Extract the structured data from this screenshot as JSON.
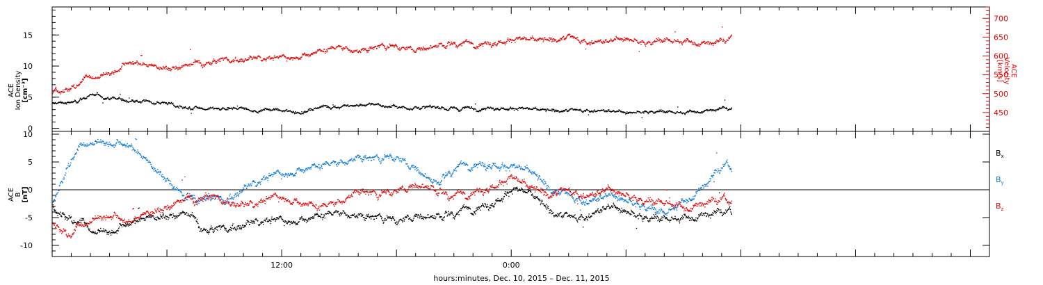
{
  "colors": {
    "black": "#000000",
    "red": "#e00000",
    "blue": "#0a78d8"
  },
  "xlabel": "hours:minutes, Dec. 10, 2015 – Dec. 11, 2015",
  "chart_data": [
    {
      "type": "scatter",
      "panel": "top",
      "ylabel_left": [
        "ACE",
        "Ion Density",
        "[cm⁻³]"
      ],
      "ylabel_right": [
        "ACE",
        "Velocity",
        "[km/s]"
      ],
      "x_axis": {
        "unit": "hours since Dec 10 00:00",
        "range": [
          0,
          49
        ],
        "tick_labels": [
          {
            "x": 12,
            "label": "12:00"
          },
          {
            "x": 24,
            "label": "0:00"
          }
        ]
      },
      "y_left": {
        "range": [
          -0.5,
          19.5
        ],
        "ticks": [
          0,
          5,
          10,
          15
        ]
      },
      "y_right": {
        "range": [
          400,
          730
        ],
        "ticks": [
          450,
          500,
          550,
          600,
          650,
          700
        ]
      },
      "series": [
        {
          "key": "density",
          "axis": "left",
          "color": "black",
          "x_end": 35.5,
          "anchors": [
            [
              0,
              4
            ],
            [
              1,
              4.3
            ],
            [
              2,
              5.5
            ],
            [
              3,
              5
            ],
            [
              4,
              4.6
            ],
            [
              5,
              4.3
            ],
            [
              6,
              4.1
            ],
            [
              7,
              3.4
            ],
            [
              8,
              3.1
            ],
            [
              10,
              3.1
            ],
            [
              11,
              3
            ],
            [
              12,
              2.9
            ],
            [
              13,
              2.7
            ],
            [
              14,
              3.4
            ],
            [
              15,
              3.7
            ],
            [
              17,
              3.8
            ],
            [
              18,
              3.5
            ],
            [
              19,
              3.3
            ],
            [
              20,
              3.2
            ],
            [
              21,
              3.2
            ],
            [
              22,
              3.3
            ],
            [
              23,
              3.5
            ],
            [
              24,
              3.3
            ],
            [
              25,
              3
            ],
            [
              26,
              2.8
            ],
            [
              27,
              2.9
            ],
            [
              28,
              3
            ],
            [
              29,
              2.9
            ],
            [
              30,
              2.5
            ],
            [
              31,
              2.7
            ],
            [
              32,
              2.8
            ],
            [
              33,
              2.6
            ],
            [
              34,
              3
            ],
            [
              35,
              3.3
            ],
            [
              35.5,
              3.1
            ]
          ]
        },
        {
          "key": "velocity",
          "axis": "right",
          "color": "red",
          "x_end": 35.5,
          "anchors": [
            [
              0,
              500
            ],
            [
              1,
              520
            ],
            [
              2,
              545
            ],
            [
              3,
              560
            ],
            [
              4,
              585
            ],
            [
              5,
              575
            ],
            [
              6,
              570
            ],
            [
              7,
              572
            ],
            [
              8,
              585
            ],
            [
              9,
              590
            ],
            [
              10,
              590
            ],
            [
              11,
              595
            ],
            [
              12,
              595
            ],
            [
              13,
              605
            ],
            [
              14,
              615
            ],
            [
              15,
              625
            ],
            [
              16,
              615
            ],
            [
              17,
              625
            ],
            [
              18,
              625
            ],
            [
              19,
              620
            ],
            [
              20,
              625
            ],
            [
              21,
              635
            ],
            [
              22,
              635
            ],
            [
              23,
              640
            ],
            [
              24,
              645
            ],
            [
              25,
              640
            ],
            [
              26,
              640
            ],
            [
              27,
              650
            ],
            [
              28,
              640
            ],
            [
              29,
              640
            ],
            [
              30,
              645
            ],
            [
              31,
              635
            ],
            [
              32,
              645
            ],
            [
              33,
              640
            ],
            [
              34,
              640
            ],
            [
              35,
              640
            ],
            [
              35.5,
              645
            ]
          ]
        }
      ]
    },
    {
      "type": "scatter",
      "panel": "bottom",
      "ylabel_left": [
        "ACE",
        "B",
        "[nT]"
      ],
      "x_axis": {
        "unit": "hours since Dec 10 00:00",
        "range": [
          0,
          49
        ],
        "tick_labels": [
          {
            "x": 12,
            "label": "12:00"
          },
          {
            "x": 24,
            "label": "0:00"
          }
        ]
      },
      "y_left": {
        "range": [
          -12,
          10.5
        ],
        "ticks": [
          -10,
          -5,
          0,
          5,
          10
        ]
      },
      "zero_line": true,
      "series": [
        {
          "key": "bx",
          "name": "B",
          "subscript": "x",
          "color": "black",
          "x_end": 35.5,
          "anchors": [
            [
              0,
              -3
            ],
            [
              1,
              -5
            ],
            [
              2,
              -7
            ],
            [
              3,
              -7
            ],
            [
              4,
              -6
            ],
            [
              5,
              -5
            ],
            [
              6,
              -4.5
            ],
            [
              7,
              -4.5
            ],
            [
              8,
              -7
            ],
            [
              9,
              -7
            ],
            [
              10,
              -6.5
            ],
            [
              11,
              -5.5
            ],
            [
              12,
              -5.5
            ],
            [
              13,
              -5
            ],
            [
              14,
              -4.5
            ],
            [
              15,
              -4
            ],
            [
              16,
              -4.5
            ],
            [
              17,
              -5
            ],
            [
              18,
              -5.5
            ],
            [
              19,
              -4.5
            ],
            [
              20,
              -5
            ],
            [
              21,
              -4
            ],
            [
              22,
              -3
            ],
            [
              23,
              -2
            ],
            [
              24,
              0
            ],
            [
              25,
              -1
            ],
            [
              26,
              -4
            ],
            [
              27,
              -5
            ],
            [
              28,
              -4.5
            ],
            [
              29,
              -3
            ],
            [
              30,
              -4
            ],
            [
              31,
              -5
            ],
            [
              32,
              -5
            ],
            [
              33,
              -5
            ],
            [
              34,
              -4
            ],
            [
              35,
              -4
            ],
            [
              35.5,
              -4.5
            ]
          ]
        },
        {
          "key": "by",
          "name": "B",
          "subscript": "y",
          "color": "blue",
          "x_end": 35.5,
          "anchors": [
            [
              0,
              -2
            ],
            [
              1,
              6
            ],
            [
              2,
              9
            ],
            [
              3,
              9
            ],
            [
              4,
              8
            ],
            [
              5,
              5
            ],
            [
              6,
              2
            ],
            [
              7,
              -2
            ],
            [
              8,
              -1
            ],
            [
              9,
              -2
            ],
            [
              10,
              0
            ],
            [
              11,
              2
            ],
            [
              12,
              3
            ],
            [
              13,
              4
            ],
            [
              14,
              4.5
            ],
            [
              15,
              5
            ],
            [
              16,
              6
            ],
            [
              17,
              5.5
            ],
            [
              18,
              6
            ],
            [
              19,
              4
            ],
            [
              20,
              1
            ],
            [
              21,
              4
            ],
            [
              22,
              5
            ],
            [
              23,
              5
            ],
            [
              24,
              4
            ],
            [
              25,
              3
            ],
            [
              26,
              0
            ],
            [
              27,
              -1
            ],
            [
              28,
              -2
            ],
            [
              29,
              -1
            ],
            [
              30,
              -2
            ],
            [
              31,
              -3
            ],
            [
              32,
              -4
            ],
            [
              33,
              -2
            ],
            [
              34,
              1
            ],
            [
              35,
              4
            ],
            [
              35.5,
              4
            ]
          ]
        },
        {
          "key": "bz",
          "name": "B",
          "subscript": "z",
          "color": "red",
          "x_end": 35.5,
          "anchors": [
            [
              0,
              -6
            ],
            [
              1,
              -8
            ],
            [
              2,
              -5
            ],
            [
              3,
              -4
            ],
            [
              4,
              -6
            ],
            [
              5,
              -4
            ],
            [
              6,
              -3
            ],
            [
              7,
              -2
            ],
            [
              8,
              -1
            ],
            [
              9,
              -2
            ],
            [
              10,
              -3
            ],
            [
              11,
              -2
            ],
            [
              12,
              -1
            ],
            [
              13,
              -2
            ],
            [
              14,
              -3
            ],
            [
              15,
              -2
            ],
            [
              16,
              0
            ],
            [
              17,
              -1
            ],
            [
              18,
              0
            ],
            [
              19,
              1
            ],
            [
              20,
              0
            ],
            [
              21,
              -1
            ],
            [
              22,
              0
            ],
            [
              23,
              1
            ],
            [
              24,
              2
            ],
            [
              25,
              0
            ],
            [
              26,
              -1
            ],
            [
              27,
              0
            ],
            [
              28,
              -1
            ],
            [
              29,
              0
            ],
            [
              30,
              -1
            ],
            [
              31,
              -2
            ],
            [
              32,
              -2
            ],
            [
              33,
              -3
            ],
            [
              34,
              -2
            ],
            [
              35,
              -2
            ],
            [
              35.5,
              -2
            ]
          ]
        }
      ]
    }
  ]
}
